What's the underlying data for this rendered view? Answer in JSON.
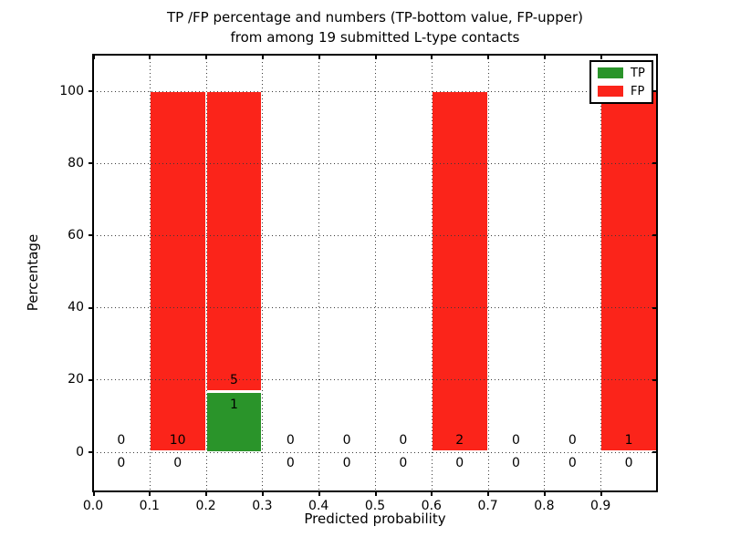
{
  "figure": {
    "title_line1": "TP /FP percentage and numbers (TP-bottom value, FP-upper)",
    "title_line2": "from among 19 submitted L-type contacts"
  },
  "chart_data": {
    "type": "bar",
    "stacked": true,
    "title": "TP /FP percentage and numbers (TP-bottom value, FP-upper) from among 19 submitted L-type contacts",
    "xlabel": "Predicted probability",
    "ylabel": "Percentage",
    "total_contacts": 19,
    "xlim": [
      0.0,
      1.0
    ],
    "ylim": [
      -11,
      110
    ],
    "grid": {
      "style": "dotted",
      "color": "#3a3a3a"
    },
    "colors": {
      "tp": "#2a942a",
      "fp": "#fb241a",
      "frame": "#000000",
      "background": "#ffffff"
    },
    "xticks": [
      {
        "v": 0.0,
        "label": "0.0"
      },
      {
        "v": 0.1,
        "label": "0.1"
      },
      {
        "v": 0.2,
        "label": "0.2"
      },
      {
        "v": 0.3,
        "label": "0.3"
      },
      {
        "v": 0.4,
        "label": "0.4"
      },
      {
        "v": 0.5,
        "label": "0.5"
      },
      {
        "v": 0.6,
        "label": "0.6"
      },
      {
        "v": 0.7,
        "label": "0.7"
      },
      {
        "v": 0.8,
        "label": "0.8"
      },
      {
        "v": 0.9,
        "label": "0.9"
      }
    ],
    "yticks": [
      {
        "v": 0,
        "label": "0"
      },
      {
        "v": 20,
        "label": "20"
      },
      {
        "v": 40,
        "label": "40"
      },
      {
        "v": 60,
        "label": "60"
      },
      {
        "v": 80,
        "label": "80"
      },
      {
        "v": 100,
        "label": "100"
      }
    ],
    "legend": {
      "position": "upper right",
      "entries": [
        {
          "label": "TP",
          "color": "#2a942a"
        },
        {
          "label": "FP",
          "color": "#fb241a"
        }
      ]
    },
    "bins": [
      {
        "x0": 0.0,
        "x1": 0.1,
        "tp": 0,
        "fp": 0,
        "tp_pct": 0,
        "fp_pct": 0,
        "fp_label": "0",
        "tp_label": "0"
      },
      {
        "x0": 0.1,
        "x1": 0.2,
        "tp": 0,
        "fp": 10,
        "tp_pct": 0,
        "fp_pct": 100,
        "fp_label": "10",
        "tp_label": "0"
      },
      {
        "x0": 0.2,
        "x1": 0.3,
        "tp": 1,
        "fp": 5,
        "tp_pct": 16.6667,
        "fp_pct": 83.3333,
        "fp_label": "5",
        "tp_label": "1"
      },
      {
        "x0": 0.3,
        "x1": 0.4,
        "tp": 0,
        "fp": 0,
        "tp_pct": 0,
        "fp_pct": 0,
        "fp_label": "0",
        "tp_label": "0"
      },
      {
        "x0": 0.4,
        "x1": 0.5,
        "tp": 0,
        "fp": 0,
        "tp_pct": 0,
        "fp_pct": 0,
        "fp_label": "0",
        "tp_label": "0"
      },
      {
        "x0": 0.5,
        "x1": 0.6,
        "tp": 0,
        "fp": 0,
        "tp_pct": 0,
        "fp_pct": 0,
        "fp_label": "0",
        "tp_label": "0"
      },
      {
        "x0": 0.6,
        "x1": 0.7,
        "tp": 0,
        "fp": 2,
        "tp_pct": 0,
        "fp_pct": 100,
        "fp_label": "2",
        "tp_label": "0"
      },
      {
        "x0": 0.7,
        "x1": 0.8,
        "tp": 0,
        "fp": 0,
        "tp_pct": 0,
        "fp_pct": 0,
        "fp_label": "0",
        "tp_label": "0"
      },
      {
        "x0": 0.8,
        "x1": 0.9,
        "tp": 0,
        "fp": 0,
        "tp_pct": 0,
        "fp_pct": 0,
        "fp_label": "0",
        "tp_label": "0"
      },
      {
        "x0": 0.9,
        "x1": 1.0,
        "tp": 0,
        "fp": 1,
        "tp_pct": 0,
        "fp_pct": 100,
        "fp_label": "1",
        "tp_label": "0"
      }
    ]
  }
}
